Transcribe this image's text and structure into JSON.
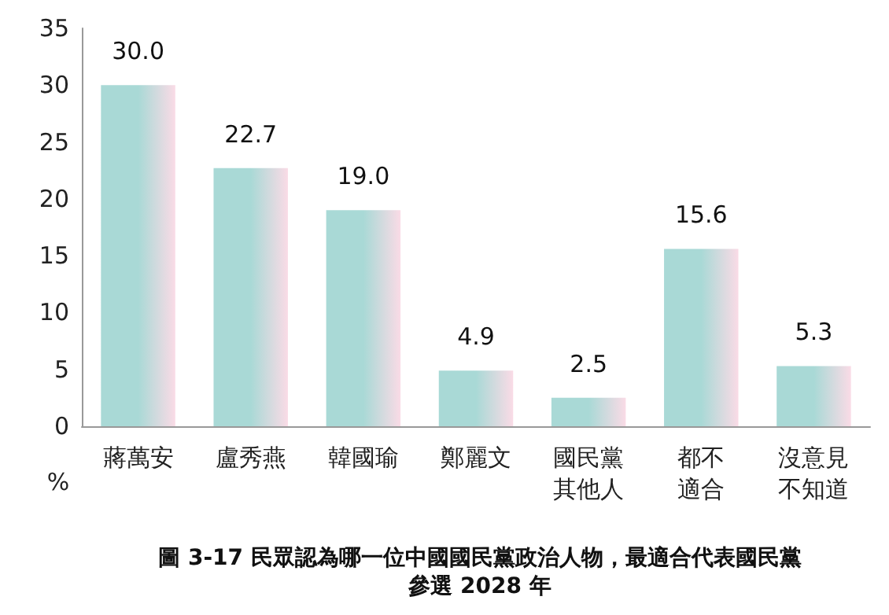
{
  "chart_data": {
    "type": "bar",
    "title": "圖 3-17 民眾認為哪一位中國國民黨政治人物，最適合代表國民黨參選 2028 年",
    "ylabel": "%",
    "categories": [
      "蔣萬安",
      "盧秀燕",
      "韓國瑜",
      "鄭麗文",
      "國民黨其他人",
      "都不適合",
      "沒意見不知道"
    ],
    "values": [
      30.0,
      22.7,
      19.0,
      4.9,
      2.5,
      15.6,
      5.3
    ],
    "value_labels": [
      "30.0",
      "22.7",
      "19.0",
      "4.9",
      "2.5",
      "15.6",
      "5.3"
    ],
    "color": "#a9d9d6",
    "ylim": [
      0,
      35
    ],
    "yticks": [
      0,
      5,
      10,
      15,
      20,
      25,
      30,
      35
    ],
    "grid": false
  }
}
